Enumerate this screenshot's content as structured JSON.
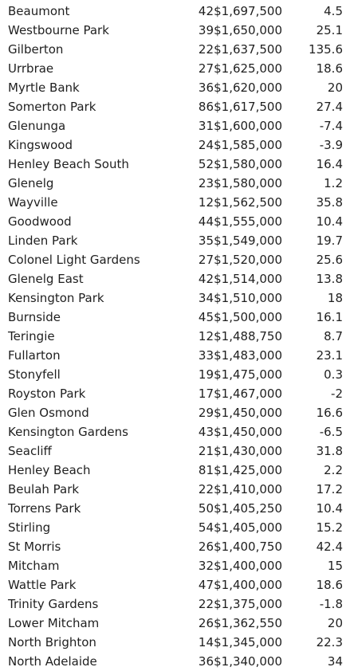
{
  "table": {
    "rows": [
      {
        "suburb": "Beaumont",
        "sales": "42",
        "price": "$1,697,500",
        "growth": "4.5"
      },
      {
        "suburb": "Westbourne Park",
        "sales": "39",
        "price": "$1,650,000",
        "growth": "25.1"
      },
      {
        "suburb": "Gilberton",
        "sales": "22",
        "price": "$1,637,500",
        "growth": "135.6"
      },
      {
        "suburb": "Urrbrae",
        "sales": "27",
        "price": "$1,625,000",
        "growth": "18.6"
      },
      {
        "suburb": "Myrtle Bank",
        "sales": "36",
        "price": "$1,620,000",
        "growth": "20"
      },
      {
        "suburb": "Somerton Park",
        "sales": "86",
        "price": "$1,617,500",
        "growth": "27.4"
      },
      {
        "suburb": "Glenunga",
        "sales": "31",
        "price": "$1,600,000",
        "growth": "-7.4"
      },
      {
        "suburb": "Kingswood",
        "sales": "24",
        "price": "$1,585,000",
        "growth": "-3.9"
      },
      {
        "suburb": "Henley Beach South",
        "sales": "52",
        "price": "$1,580,000",
        "growth": "16.4"
      },
      {
        "suburb": "Glenelg",
        "sales": "23",
        "price": "$1,580,000",
        "growth": "1.2"
      },
      {
        "suburb": "Wayville",
        "sales": "12",
        "price": "$1,562,500",
        "growth": "35.8"
      },
      {
        "suburb": "Goodwood",
        "sales": "44",
        "price": "$1,555,000",
        "growth": "10.4"
      },
      {
        "suburb": "Linden Park",
        "sales": "35",
        "price": "$1,549,000",
        "growth": "19.7"
      },
      {
        "suburb": "Colonel Light Gardens",
        "sales": "27",
        "price": "$1,520,000",
        "growth": "25.6"
      },
      {
        "suburb": "Glenelg East",
        "sales": "42",
        "price": "$1,514,000",
        "growth": "13.8"
      },
      {
        "suburb": "Kensington Park",
        "sales": "34",
        "price": "$1,510,000",
        "growth": "18"
      },
      {
        "suburb": "Burnside",
        "sales": "45",
        "price": "$1,500,000",
        "growth": "16.1"
      },
      {
        "suburb": "Teringie",
        "sales": "12",
        "price": "$1,488,750",
        "growth": "8.7"
      },
      {
        "suburb": "Fullarton",
        "sales": "33",
        "price": "$1,483,000",
        "growth": "23.1"
      },
      {
        "suburb": "Stonyfell",
        "sales": "19",
        "price": "$1,475,000",
        "growth": "0.3"
      },
      {
        "suburb": "Royston Park",
        "sales": "17",
        "price": "$1,467,000",
        "growth": "-2"
      },
      {
        "suburb": "Glen Osmond",
        "sales": "29",
        "price": "$1,450,000",
        "growth": "16.6"
      },
      {
        "suburb": "Kensington Gardens",
        "sales": "43",
        "price": "$1,450,000",
        "growth": "-6.5"
      },
      {
        "suburb": "Seacliff",
        "sales": "21",
        "price": "$1,430,000",
        "growth": "31.8"
      },
      {
        "suburb": "Henley Beach",
        "sales": "81",
        "price": "$1,425,000",
        "growth": "2.2"
      },
      {
        "suburb": "Beulah Park",
        "sales": "22",
        "price": "$1,410,000",
        "growth": "17.2"
      },
      {
        "suburb": "Torrens Park",
        "sales": "50",
        "price": "$1,405,250",
        "growth": "10.4"
      },
      {
        "suburb": "Stirling",
        "sales": "54",
        "price": "$1,405,000",
        "growth": "15.2"
      },
      {
        "suburb": "St Morris",
        "sales": "26",
        "price": "$1,400,750",
        "growth": "42.4"
      },
      {
        "suburb": "Mitcham",
        "sales": "32",
        "price": "$1,400,000",
        "growth": "15"
      },
      {
        "suburb": "Wattle Park",
        "sales": "47",
        "price": "$1,400,000",
        "growth": "18.6"
      },
      {
        "suburb": "Trinity Gardens",
        "sales": "22",
        "price": "$1,375,000",
        "growth": "-1.8"
      },
      {
        "suburb": "Lower Mitcham",
        "sales": "26",
        "price": "$1,362,550",
        "growth": "20"
      },
      {
        "suburb": "North Brighton",
        "sales": "14",
        "price": "$1,345,000",
        "growth": "22.3"
      },
      {
        "suburb": "North Adelaide",
        "sales": "36",
        "price": "$1,340,000",
        "growth": "34"
      }
    ]
  }
}
